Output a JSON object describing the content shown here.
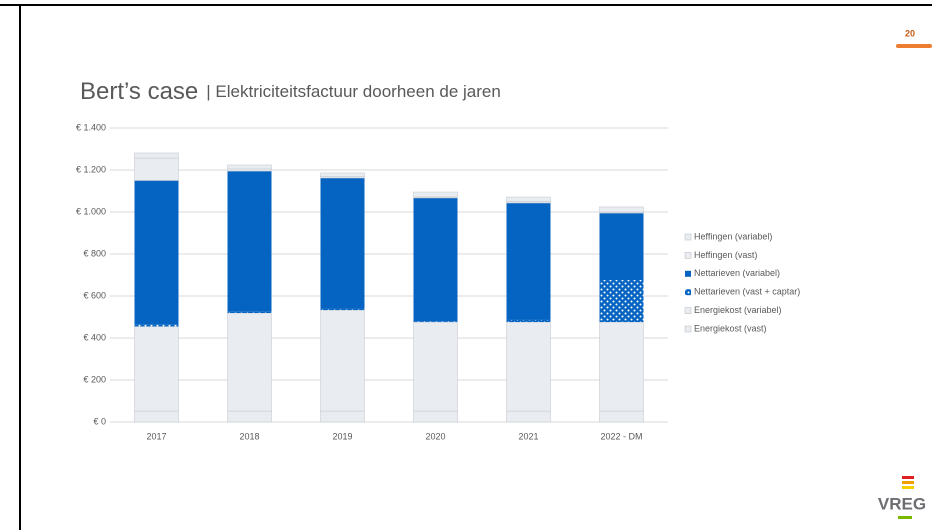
{
  "page_number": "20",
  "title": "Bert’s case",
  "subtitle": "| Elektriciteitsfactuur doorheen de jaren",
  "logo": "VREG",
  "chart_data": {
    "type": "stacked_bar",
    "categories": [
      "2017",
      "2018",
      "2019",
      "2020",
      "2021",
      "2022 - DM"
    ],
    "series": [
      {
        "name": "Energiekost (vast)",
        "color": "#e9ecf0",
        "values": [
          52,
          52,
          52,
          52,
          52,
          52
        ]
      },
      {
        "name": "Energiekost (variabel)",
        "color": "#e9ecf0",
        "values": [
          403,
          467,
          481,
          424,
          424,
          424
        ]
      },
      {
        "name": "Nettarieven (vast + captar)",
        "color": "#0563c1",
        "pattern": "dots",
        "values": [
          8,
          8,
          7,
          4,
          10,
          200
        ]
      },
      {
        "name": "Nettarieven (variabel)",
        "color": "#0563c1",
        "values": [
          687,
          668,
          622,
          587,
          557,
          319
        ]
      },
      {
        "name": "Heffingen (vast)",
        "color": "#e9ecf0",
        "values": [
          107,
          10,
          8,
          5,
          7,
          5
        ]
      },
      {
        "name": "Heffingen (variabel)",
        "color": "#e9ecf0",
        "values": [
          24,
          19,
          16,
          23,
          21,
          24
        ]
      }
    ],
    "ylim": [
      0,
      1400
    ],
    "yticks": [
      {
        "value": 0,
        "label": "€ 0"
      },
      {
        "value": 200,
        "label": "€ 200"
      },
      {
        "value": 400,
        "label": "€ 400"
      },
      {
        "value": 600,
        "label": "€ 600"
      },
      {
        "value": 800,
        "label": "€ 800"
      },
      {
        "value": 1000,
        "label": "€ 1.000"
      },
      {
        "value": 1200,
        "label": "€ 1.200"
      },
      {
        "value": 1400,
        "label": "€ 1.400"
      }
    ],
    "grid": true,
    "legend": "right"
  }
}
